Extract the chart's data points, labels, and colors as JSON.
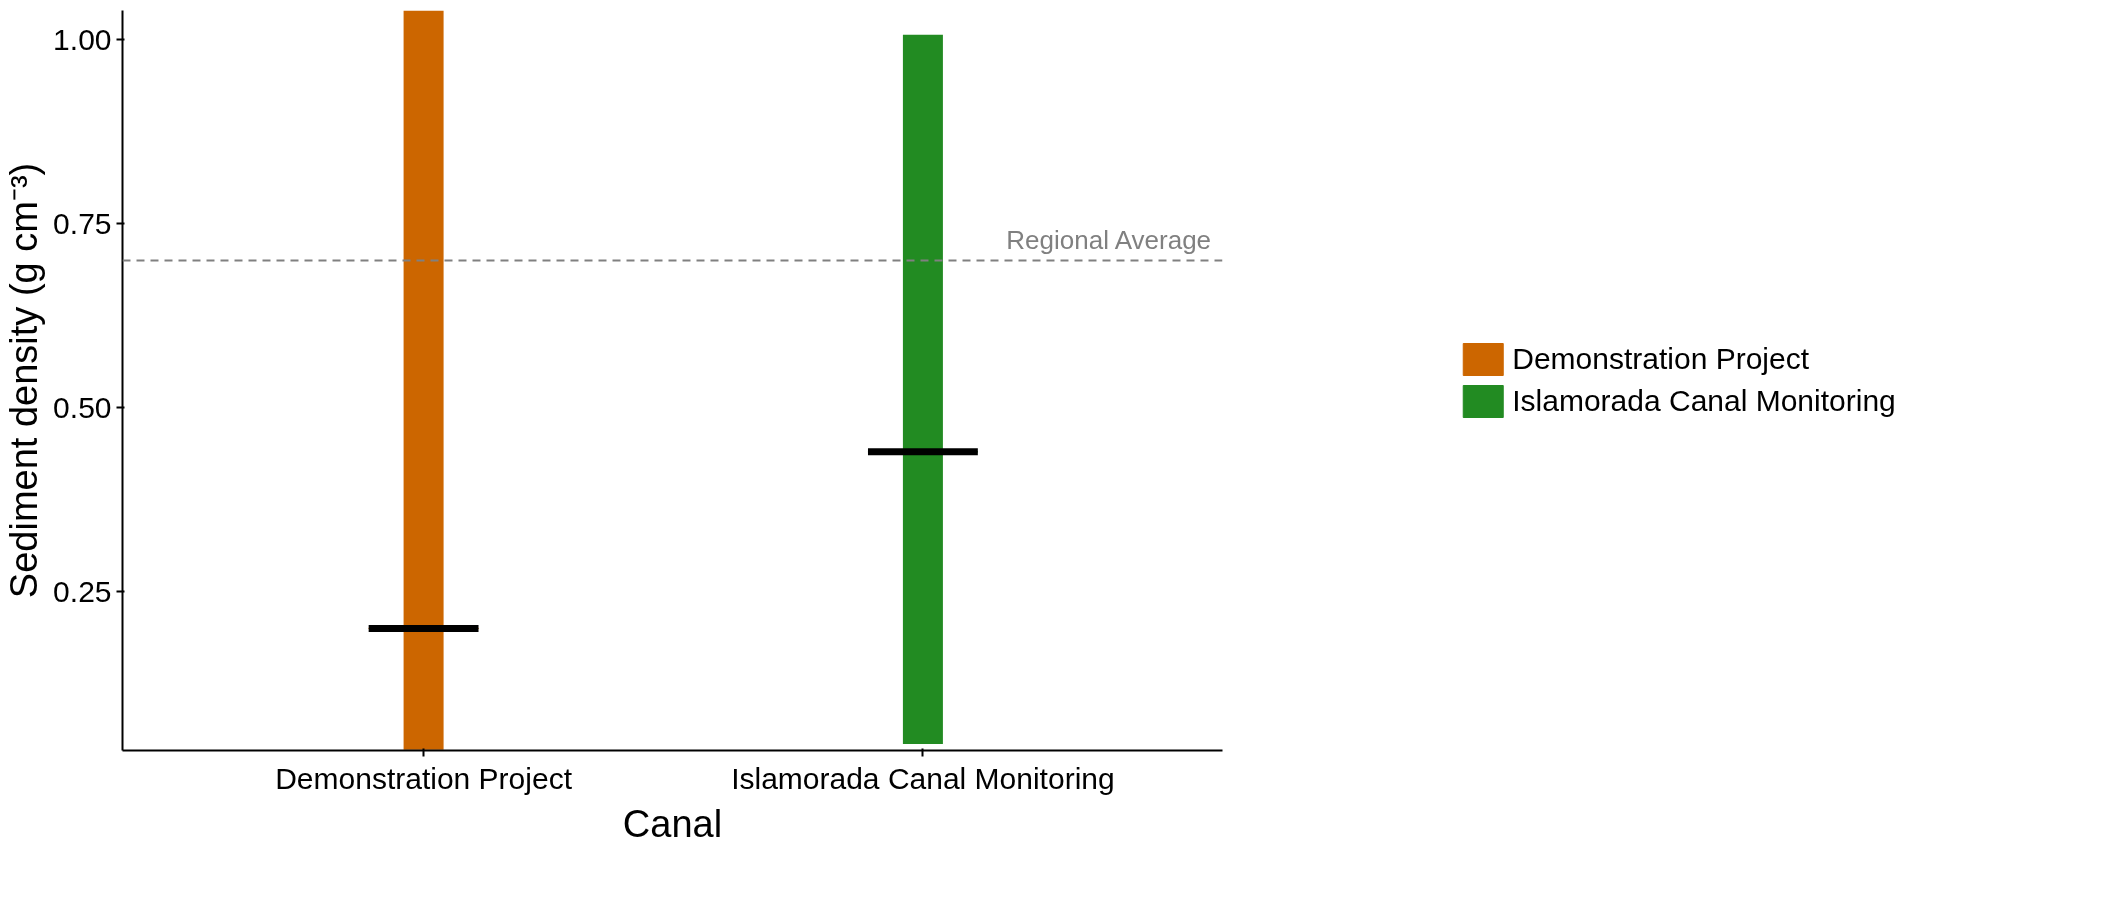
{
  "chart_data": {
    "type": "box",
    "xlabel": "Canal",
    "ylabel": "Sediment density (g cm⁻³)",
    "legend": "right",
    "grid": false,
    "categories": [
      "Demonstration Project",
      "Islamorada Canal Monitoring"
    ],
    "ylim": [
      0.034,
      1.04
    ],
    "yticks": [
      {
        "value": 0.25,
        "label": "0.25"
      },
      {
        "value": 0.5,
        "label": "0.50"
      },
      {
        "value": 0.75,
        "label": "0.75"
      },
      {
        "value": 1,
        "label": "1.00"
      }
    ],
    "ref_lines": [
      {
        "axis": "y",
        "value": 0.7,
        "label": "Regional Average",
        "color": "#808080",
        "line_style": "dashed"
      }
    ],
    "series": [
      {
        "name": "Demonstration Project",
        "color": "#cc6600",
        "boxes": [
          {
            "low": 0.035,
            "q1": 0.2,
            "median": 0.2,
            "q3": 0.2,
            "high": 1.04
          },
          null
        ]
      },
      {
        "name": "Islamorada Canal Monitoring",
        "color": "#228b22",
        "boxes": [
          null,
          {
            "low": 0.043,
            "q1": 0.44,
            "median": 0.44,
            "q3": 0.44,
            "high": 1.007
          }
        ]
      }
    ]
  }
}
